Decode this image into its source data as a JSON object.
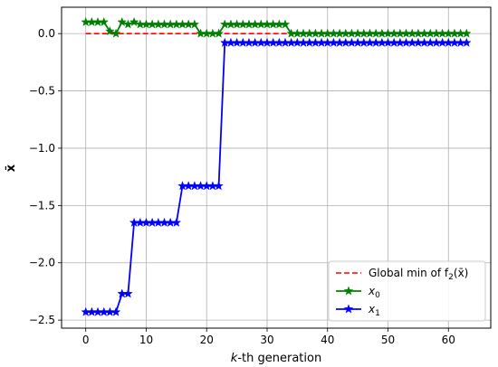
{
  "chart_data": {
    "type": "line",
    "title": "",
    "xlabel": "k-th generation",
    "xlabel_prefix": "k",
    "xlabel_suffix": "-th generation",
    "ylabel": "x̄",
    "xlim": [
      -4,
      67
    ],
    "ylim": [
      -2.57,
      0.23
    ],
    "xticks": [
      0,
      10,
      20,
      30,
      40,
      50,
      60
    ],
    "yticks": [
      0.0,
      -0.5,
      -1.0,
      -1.5,
      -2.0,
      -2.5
    ],
    "xtick_labels": [
      "0",
      "10",
      "20",
      "30",
      "40",
      "50",
      "60"
    ],
    "ytick_labels": [
      "0.0",
      "−0.5",
      "−1.0",
      "−1.5",
      "−2.0",
      "−2.5"
    ],
    "grid": true,
    "legend_position": "lower-right",
    "reference_line": {
      "name": "Global min of f2(x̄)",
      "label_text": "Global min of f",
      "label_sub": "2",
      "label_tail": "(x̄)",
      "color": "#ff0000",
      "style": "dashed",
      "y": 0.0,
      "x_range": [
        0,
        63
      ]
    },
    "series": [
      {
        "name": "x0",
        "label_main": "x",
        "label_sub": "0",
        "color": "#008000",
        "marker": "star",
        "x": [
          0,
          1,
          2,
          3,
          4,
          5,
          6,
          7,
          8,
          9,
          10,
          11,
          12,
          13,
          14,
          15,
          16,
          17,
          18,
          19,
          20,
          21,
          22,
          23,
          24,
          25,
          26,
          27,
          28,
          29,
          30,
          31,
          32,
          33,
          34,
          35,
          36,
          37,
          38,
          39,
          40,
          41,
          42,
          43,
          44,
          45,
          46,
          47,
          48,
          49,
          50,
          51,
          52,
          53,
          54,
          55,
          56,
          57,
          58,
          59,
          60,
          61,
          62,
          63
        ],
        "y": [
          0.1,
          0.1,
          0.1,
          0.1,
          0.02,
          0.0,
          0.1,
          0.08,
          0.1,
          0.08,
          0.08,
          0.08,
          0.08,
          0.08,
          0.08,
          0.08,
          0.08,
          0.08,
          0.08,
          0.0,
          0.0,
          0.0,
          0.0,
          0.08,
          0.08,
          0.08,
          0.08,
          0.08,
          0.08,
          0.08,
          0.08,
          0.08,
          0.08,
          0.08,
          0.0,
          0.0,
          0.0,
          0.0,
          0.0,
          0.0,
          0.0,
          0.0,
          0.0,
          0.0,
          0.0,
          0.0,
          0.0,
          0.0,
          0.0,
          0.0,
          0.0,
          0.0,
          0.0,
          0.0,
          0.0,
          0.0,
          0.0,
          0.0,
          0.0,
          0.0,
          0.0,
          0.0,
          0.0,
          0.0
        ]
      },
      {
        "name": "x1",
        "label_main": "x",
        "label_sub": "1",
        "color": "#0000ff",
        "marker": "star",
        "x": [
          0,
          1,
          2,
          3,
          4,
          5,
          6,
          7,
          8,
          9,
          10,
          11,
          12,
          13,
          14,
          15,
          16,
          17,
          18,
          19,
          20,
          21,
          22,
          23,
          24,
          25,
          26,
          27,
          28,
          29,
          30,
          31,
          32,
          33,
          34,
          35,
          36,
          37,
          38,
          39,
          40,
          41,
          42,
          43,
          44,
          45,
          46,
          47,
          48,
          49,
          50,
          51,
          52,
          53,
          54,
          55,
          56,
          57,
          58,
          59,
          60,
          61,
          62,
          63
        ],
        "y": [
          -2.43,
          -2.43,
          -2.43,
          -2.43,
          -2.43,
          -2.43,
          -2.27,
          -2.27,
          -1.65,
          -1.65,
          -1.65,
          -1.65,
          -1.65,
          -1.65,
          -1.65,
          -1.65,
          -1.33,
          -1.33,
          -1.33,
          -1.33,
          -1.33,
          -1.33,
          -1.33,
          -0.08,
          -0.08,
          -0.08,
          -0.08,
          -0.08,
          -0.08,
          -0.08,
          -0.08,
          -0.08,
          -0.08,
          -0.08,
          -0.08,
          -0.08,
          -0.08,
          -0.08,
          -0.08,
          -0.08,
          -0.08,
          -0.08,
          -0.08,
          -0.08,
          -0.08,
          -0.08,
          -0.08,
          -0.08,
          -0.08,
          -0.08,
          -0.08,
          -0.08,
          -0.08,
          -0.08,
          -0.08,
          -0.08,
          -0.08,
          -0.08,
          -0.08,
          -0.08,
          -0.08,
          -0.08,
          -0.08,
          -0.08
        ]
      }
    ]
  }
}
